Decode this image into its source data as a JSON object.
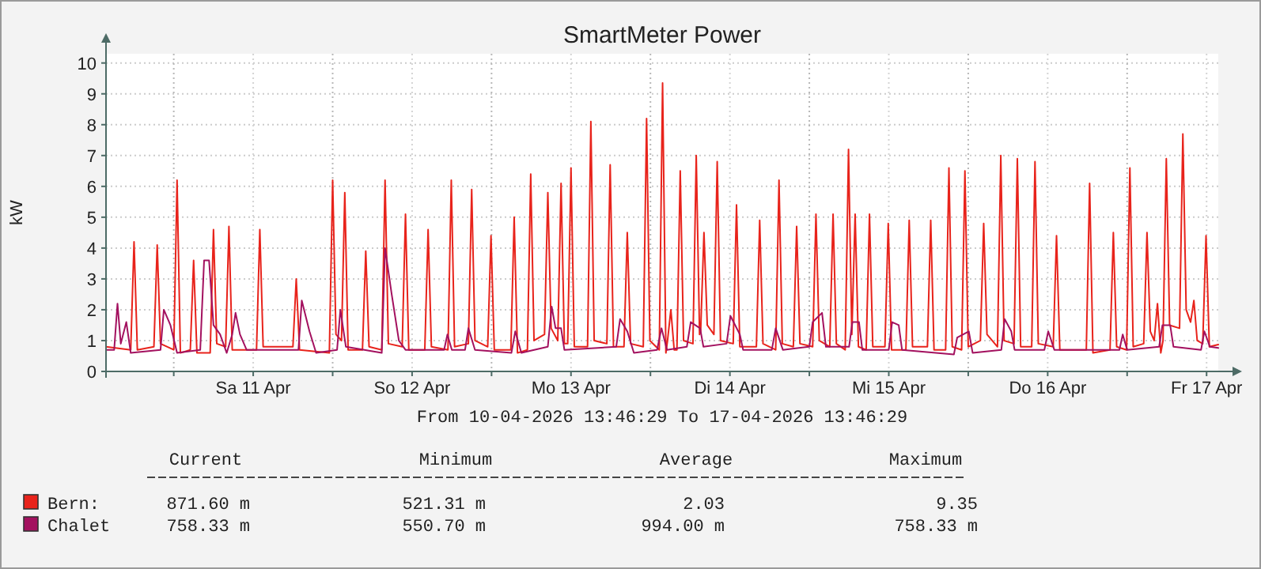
{
  "chart_data": {
    "type": "line",
    "title": "SmartMeter Power",
    "ylabel": "kW",
    "xlabel": "From 10-04-2026 13:46:29 To 17-04-2026 13:46:29",
    "xlim": [
      "2026-04-10T13:46",
      "2026-04-17T13:46"
    ],
    "xticks": [
      {
        "value": "2026-04-11T00:00",
        "label": null
      },
      {
        "value": "2026-04-11T12:00",
        "label": "Sa 11 Apr"
      },
      {
        "value": "2026-04-12T00:00",
        "label": null
      },
      {
        "value": "2026-04-12T12:00",
        "label": "So 12 Apr"
      },
      {
        "value": "2026-04-13T00:00",
        "label": null
      },
      {
        "value": "2026-04-13T12:00",
        "label": "Mo 13 Apr"
      },
      {
        "value": "2026-04-14T00:00",
        "label": null
      },
      {
        "value": "2026-04-14T12:00",
        "label": "Di 14 Apr"
      },
      {
        "value": "2026-04-15T00:00",
        "label": null
      },
      {
        "value": "2026-04-15T12:00",
        "label": "Mi 15 Apr"
      },
      {
        "value": "2026-04-16T00:00",
        "label": null
      },
      {
        "value": "2026-04-16T12:00",
        "label": "Do 16 Apr"
      },
      {
        "value": "2026-04-17T00:00",
        "label": null
      },
      {
        "value": "2026-04-17T12:00",
        "label": "Fr 17 Apr"
      }
    ],
    "ylim": [
      0,
      10.3
    ],
    "yticks": [
      0,
      1,
      2,
      3,
      4,
      5,
      6,
      7,
      8,
      9,
      10
    ],
    "grid": true,
    "legend": "bottom",
    "marker": "none",
    "line_style": "solid",
    "annotations": [
      "Current",
      "Minimum",
      "Average",
      "Maximum",
      "871.60 m",
      "521.31 m",
      "2.03",
      "9.35",
      "758.33 m",
      "550.70 m",
      "994.00 m",
      "758.33 m"
    ],
    "series": [
      {
        "name": "Bern:",
        "color": "#e8231b",
        "x": [
          "2026-04-10T13:46",
          "2026-04-10T17:30",
          "2026-04-10T18:00",
          "2026-04-10T18:30",
          "2026-04-10T21:00",
          "2026-04-10T21:30",
          "2026-04-10T22:00",
          "2026-04-11T00:00",
          "2026-04-11T00:30",
          "2026-04-11T01:00",
          "2026-04-11T02:30",
          "2026-04-11T03:00",
          "2026-04-11T03:30",
          "2026-04-11T05:30",
          "2026-04-11T06:00",
          "2026-04-11T06:30",
          "2026-04-11T07:50",
          "2026-04-11T08:20",
          "2026-04-11T08:50",
          "2026-04-11T12:30",
          "2026-04-11T13:00",
          "2026-04-11T13:30",
          "2026-04-11T18:00",
          "2026-04-11T18:30",
          "2026-04-11T19:00",
          "2026-04-11T23:30",
          "2026-04-12T00:00",
          "2026-04-12T00:30",
          "2026-04-12T01:20",
          "2026-04-12T01:50",
          "2026-04-12T02:20",
          "2026-04-12T04:30",
          "2026-04-12T05:00",
          "2026-04-12T05:30",
          "2026-04-12T07:25",
          "2026-04-12T07:55",
          "2026-04-12T08:25",
          "2026-04-12T10:30",
          "2026-04-12T11:00",
          "2026-04-12T11:30",
          "2026-04-12T13:55",
          "2026-04-12T14:25",
          "2026-04-12T14:55",
          "2026-04-12T17:25",
          "2026-04-12T17:55",
          "2026-04-12T18:25",
          "2026-04-12T20:30",
          "2026-04-12T21:00",
          "2026-04-12T21:30",
          "2026-04-12T23:25",
          "2026-04-12T23:55",
          "2026-04-13T00:25",
          "2026-04-13T02:55",
          "2026-04-13T03:25",
          "2026-04-13T03:55",
          "2026-04-13T05:25",
          "2026-04-13T05:55",
          "2026-04-13T06:25",
          "2026-04-13T08:00",
          "2026-04-13T08:30",
          "2026-04-13T09:00",
          "2026-04-13T10:00",
          "2026-04-13T10:30",
          "2026-04-13T11:00",
          "2026-04-13T11:30",
          "2026-04-13T12:00",
          "2026-04-13T12:30",
          "2026-04-13T14:30",
          "2026-04-13T15:00",
          "2026-04-13T15:30",
          "2026-04-13T17:25",
          "2026-04-13T17:55",
          "2026-04-13T18:25",
          "2026-04-13T20:00",
          "2026-04-13T20:30",
          "2026-04-13T21:00",
          "2026-04-13T22:55",
          "2026-04-13T23:25",
          "2026-04-13T23:55",
          "2026-04-14T01:20",
          "2026-04-14T01:50",
          "2026-04-14T02:20",
          "2026-04-14T02:35",
          "2026-04-14T03:05",
          "2026-04-14T03:35",
          "2026-04-14T04:00",
          "2026-04-14T04:30",
          "2026-04-14T05:00",
          "2026-04-14T06:25",
          "2026-04-14T06:55",
          "2026-04-14T07:25",
          "2026-04-14T07:35",
          "2026-04-14T08:05",
          "2026-04-14T08:35",
          "2026-04-14T09:35",
          "2026-04-14T10:05",
          "2026-04-14T10:35",
          "2026-04-14T12:30",
          "2026-04-14T13:00",
          "2026-04-14T13:30",
          "2026-04-14T16:00",
          "2026-04-14T16:30",
          "2026-04-14T17:00",
          "2026-04-14T18:55",
          "2026-04-14T19:25",
          "2026-04-14T19:55",
          "2026-04-14T21:35",
          "2026-04-14T22:05",
          "2026-04-14T22:35",
          "2026-04-15T00:30",
          "2026-04-15T01:00",
          "2026-04-15T01:30",
          "2026-04-15T03:05",
          "2026-04-15T03:35",
          "2026-04-15T04:05",
          "2026-04-15T05:25",
          "2026-04-15T05:55",
          "2026-04-15T06:25",
          "2026-04-15T06:55",
          "2026-04-15T07:25",
          "2026-04-15T08:35",
          "2026-04-15T09:05",
          "2026-04-15T09:35",
          "2026-04-15T11:25",
          "2026-04-15T11:55",
          "2026-04-15T12:25",
          "2026-04-15T14:35",
          "2026-04-15T15:05",
          "2026-04-15T15:35",
          "2026-04-15T17:50",
          "2026-04-15T18:20",
          "2026-04-15T18:50",
          "2026-04-15T20:35",
          "2026-04-15T21:05",
          "2026-04-15T21:35",
          "2026-04-15T23:00",
          "2026-04-15T23:30",
          "2026-04-16T00:00",
          "2026-04-16T01:50",
          "2026-04-16T02:20",
          "2026-04-16T02:50",
          "2026-04-16T04:25",
          "2026-04-16T04:55",
          "2026-04-16T05:25",
          "2026-04-16T06:55",
          "2026-04-16T07:25",
          "2026-04-16T07:55",
          "2026-04-16T09:35",
          "2026-04-16T10:05",
          "2026-04-16T10:35",
          "2026-04-16T12:50",
          "2026-04-16T13:20",
          "2026-04-16T13:50",
          "2026-04-16T17:50",
          "2026-04-16T18:20",
          "2026-04-16T18:50",
          "2026-04-16T21:25",
          "2026-04-16T21:55",
          "2026-04-16T22:25",
          "2026-04-16T23:55",
          "2026-04-17T00:25",
          "2026-04-17T00:55",
          "2026-04-17T02:30",
          "2026-04-17T03:00",
          "2026-04-17T03:30",
          "2026-04-17T04:05",
          "2026-04-17T04:35",
          "2026-04-17T05:05",
          "2026-04-17T05:25",
          "2026-04-17T05:55",
          "2026-04-17T06:25",
          "2026-04-17T07:55",
          "2026-04-17T08:25",
          "2026-04-17T08:55",
          "2026-04-17T09:35",
          "2026-04-17T10:05",
          "2026-04-17T10:35",
          "2026-04-17T11:25",
          "2026-04-17T11:55",
          "2026-04-17T12:25",
          "2026-04-17T13:46"
        ],
        "values": [
          0.8,
          0.7,
          4.2,
          0.7,
          0.8,
          4.1,
          0.9,
          0.7,
          6.2,
          0.6,
          0.7,
          3.6,
          0.6,
          0.6,
          4.6,
          0.9,
          0.8,
          4.7,
          0.7,
          0.7,
          4.6,
          0.8,
          0.8,
          3.0,
          0.7,
          0.6,
          6.2,
          1.2,
          1.0,
          5.8,
          0.7,
          0.7,
          3.9,
          0.8,
          0.7,
          6.2,
          0.9,
          0.8,
          5.1,
          0.7,
          0.7,
          4.6,
          0.8,
          0.7,
          6.2,
          0.8,
          0.9,
          5.9,
          1.0,
          0.8,
          4.4,
          0.7,
          0.7,
          5.0,
          0.6,
          0.7,
          6.4,
          1.0,
          1.2,
          5.8,
          1.4,
          1.0,
          6.1,
          0.9,
          0.9,
          6.6,
          0.8,
          0.8,
          8.1,
          1.0,
          0.9,
          6.7,
          0.8,
          0.8,
          4.5,
          0.9,
          0.8,
          8.2,
          1.0,
          0.7,
          9.35,
          0.6,
          1.0,
          2.0,
          0.7,
          0.7,
          6.5,
          1.0,
          0.9,
          7.0,
          1.2,
          1.3,
          4.5,
          1.5,
          1.2,
          6.8,
          1.0,
          0.9,
          5.4,
          0.8,
          0.8,
          4.9,
          0.9,
          0.7,
          6.2,
          0.9,
          0.8,
          4.7,
          0.9,
          0.8,
          5.1,
          1.0,
          0.8,
          5.1,
          0.9,
          0.7,
          7.2,
          1.2,
          5.1,
          0.8,
          0.7,
          5.1,
          0.8,
          0.8,
          4.8,
          0.7,
          0.7,
          4.9,
          0.8,
          0.8,
          4.9,
          0.7,
          0.7,
          6.6,
          0.8,
          0.7,
          6.5,
          0.8,
          1.0,
          4.8,
          1.2,
          0.8,
          7.0,
          1.0,
          0.9,
          6.9,
          0.8,
          0.8,
          6.8,
          0.9,
          0.8,
          4.4,
          0.7,
          0.7,
          6.1,
          0.6,
          0.7,
          4.5,
          0.8,
          0.7,
          6.6,
          0.8,
          0.9,
          4.5,
          1.3,
          1.0,
          2.2,
          0.6,
          1.0,
          6.9,
          1.5,
          1.4,
          7.7,
          2.0,
          1.6,
          2.3,
          1.0,
          0.9,
          4.4,
          0.8,
          0.87
        ]
      },
      {
        "name": "Chalet",
        "color": "#a3115f",
        "x": [
          "2026-04-10T13:46",
          "2026-04-10T15:00",
          "2026-04-10T15:30",
          "2026-04-10T16:00",
          "2026-04-10T16:50",
          "2026-04-10T17:30",
          "2026-04-10T22:00",
          "2026-04-10T22:30",
          "2026-04-10T23:30",
          "2026-04-11T00:30",
          "2026-04-11T04:00",
          "2026-04-11T04:35",
          "2026-04-11T05:20",
          "2026-04-11T06:00",
          "2026-04-11T07:00",
          "2026-04-11T08:00",
          "2026-04-11T08:50",
          "2026-04-11T09:20",
          "2026-04-11T10:00",
          "2026-04-11T11:00",
          "2026-04-11T18:50",
          "2026-04-11T19:20",
          "2026-04-11T20:30",
          "2026-04-11T21:30",
          "2026-04-12T00:40",
          "2026-04-12T01:10",
          "2026-04-12T02:00",
          "2026-04-12T07:25",
          "2026-04-12T07:55",
          "2026-04-12T08:55",
          "2026-04-12T10:00",
          "2026-04-12T11:00",
          "2026-04-12T16:50",
          "2026-04-12T17:20",
          "2026-04-12T18:00",
          "2026-04-12T20:00",
          "2026-04-12T20:30",
          "2026-04-12T21:30",
          "2026-04-13T03:00",
          "2026-04-13T03:35",
          "2026-04-13T04:30",
          "2026-04-13T08:30",
          "2026-04-13T09:05",
          "2026-04-13T09:40",
          "2026-04-13T10:30",
          "2026-04-13T11:00",
          "2026-04-13T18:50",
          "2026-04-13T19:25",
          "2026-04-13T20:30",
          "2026-04-13T21:30",
          "2026-04-14T01:00",
          "2026-04-14T01:40",
          "2026-04-14T02:30",
          "2026-04-14T05:30",
          "2026-04-14T06:05",
          "2026-04-14T07:30",
          "2026-04-14T08:00",
          "2026-04-14T11:30",
          "2026-04-14T12:05",
          "2026-04-14T13:30",
          "2026-04-14T14:00",
          "2026-04-14T18:20",
          "2026-04-14T18:55",
          "2026-04-14T20:00",
          "2026-04-15T00:00",
          "2026-04-15T00:30",
          "2026-04-15T01:55",
          "2026-04-15T02:30",
          "2026-04-15T06:00",
          "2026-04-15T06:30",
          "2026-04-15T07:30",
          "2026-04-15T08:00",
          "2026-04-15T12:00",
          "2026-04-15T12:30",
          "2026-04-15T13:30",
          "2026-04-15T14:00",
          "2026-04-15T21:50",
          "2026-04-15T22:20",
          "2026-04-16T00:05",
          "2026-04-16T00:40",
          "2026-04-16T05:00",
          "2026-04-16T05:30",
          "2026-04-16T06:30",
          "2026-04-16T07:00",
          "2026-04-16T11:30",
          "2026-04-16T12:05",
          "2026-04-16T13:00",
          "2026-04-16T22:50",
          "2026-04-16T23:20",
          "2026-04-17T00:00",
          "2026-04-17T04:50",
          "2026-04-17T05:20",
          "2026-04-17T06:30",
          "2026-04-17T07:00",
          "2026-04-17T11:10",
          "2026-04-17T11:40",
          "2026-04-17T12:30",
          "2026-04-17T13:46"
        ],
        "values": [
          0.7,
          0.7,
          2.2,
          0.9,
          1.6,
          0.6,
          0.7,
          2.0,
          1.5,
          0.6,
          0.7,
          3.6,
          3.6,
          1.5,
          1.2,
          0.6,
          1.2,
          1.9,
          1.2,
          0.7,
          0.7,
          2.3,
          1.3,
          0.6,
          0.7,
          2.0,
          0.8,
          0.6,
          4.0,
          2.5,
          1.0,
          0.7,
          0.7,
          1.2,
          0.7,
          0.7,
          1.4,
          0.7,
          0.6,
          1.3,
          0.6,
          0.8,
          2.1,
          1.4,
          1.4,
          0.7,
          0.8,
          1.7,
          1.3,
          0.6,
          0.7,
          1.4,
          0.7,
          0.8,
          1.6,
          1.4,
          0.8,
          0.9,
          1.8,
          1.2,
          0.7,
          0.7,
          1.4,
          0.7,
          0.8,
          1.6,
          1.9,
          0.8,
          0.8,
          1.6,
          1.6,
          0.7,
          0.7,
          1.6,
          1.5,
          0.7,
          0.55,
          1.1,
          1.3,
          0.6,
          0.7,
          1.7,
          1.3,
          0.7,
          0.7,
          1.3,
          0.7,
          0.7,
          1.2,
          0.7,
          0.8,
          1.5,
          1.5,
          0.8,
          0.7,
          1.3,
          0.8,
          0.76
        ]
      }
    ]
  }
}
